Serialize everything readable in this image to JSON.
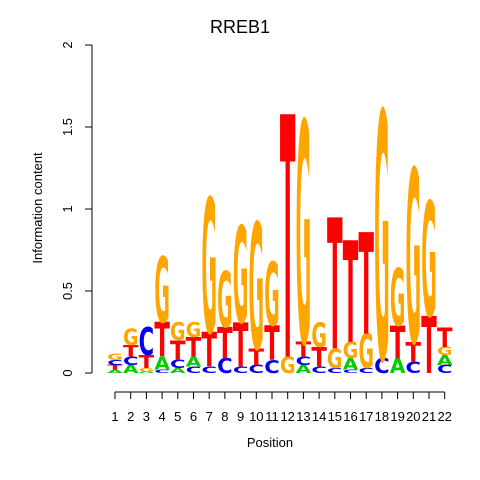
{
  "chart_data": {
    "type": "sequence-logo",
    "title": "RREB1",
    "xlabel": "Position",
    "ylabel": "Information content",
    "ylim": [
      0,
      2
    ],
    "yticks": [
      "0",
      "0.5",
      "1",
      "1.5",
      "2"
    ],
    "positions": [
      "1",
      "2",
      "3",
      "4",
      "5",
      "6",
      "7",
      "8",
      "9",
      "10",
      "11",
      "12",
      "13",
      "14",
      "15",
      "16",
      "17",
      "18",
      "19",
      "20",
      "21",
      "22"
    ],
    "colors": {
      "A": "#00cc00",
      "C": "#0000ee",
      "G": "#ffa500",
      "T": "#ff0000"
    },
    "stacks": [
      [
        [
          "A",
          0.02
        ],
        [
          "T",
          0.03
        ],
        [
          "C",
          0.03
        ],
        [
          "G",
          0.04
        ]
      ],
      [
        [
          "A",
          0.05
        ],
        [
          "C",
          0.05
        ],
        [
          "T",
          0.07
        ],
        [
          "G",
          0.1
        ]
      ],
      [
        [
          "A",
          0.01
        ],
        [
          "G",
          0.02
        ],
        [
          "T",
          0.08
        ],
        [
          "C",
          0.17
        ]
      ],
      [
        [
          "C",
          0.02
        ],
        [
          "A",
          0.08
        ],
        [
          "T",
          0.21
        ],
        [
          "G",
          0.4
        ]
      ],
      [
        [
          "A",
          0.03
        ],
        [
          "C",
          0.05
        ],
        [
          "T",
          0.12
        ],
        [
          "G",
          0.11
        ]
      ],
      [
        [
          "C",
          0.04
        ],
        [
          "A",
          0.06
        ],
        [
          "T",
          0.12
        ],
        [
          "G",
          0.09
        ]
      ],
      [
        [
          "C",
          0.04
        ],
        [
          "T",
          0.21
        ],
        [
          "G",
          0.82
        ]
      ],
      [
        [
          "C",
          0.09
        ],
        [
          "T",
          0.19
        ],
        [
          "G",
          0.34
        ]
      ],
      [
        [
          "C",
          0.04
        ],
        [
          "T",
          0.27
        ],
        [
          "G",
          0.59
        ]
      ],
      [
        [
          "C",
          0.05
        ],
        [
          "T",
          0.1
        ],
        [
          "G",
          0.77
        ]
      ],
      [
        [
          "C",
          0.08
        ],
        [
          "T",
          0.21
        ],
        [
          "G",
          0.39
        ]
      ],
      [
        [
          "G",
          0.1
        ],
        [
          "T",
          1.48
        ]
      ],
      [
        [
          "A",
          0.05
        ],
        [
          "C",
          0.05
        ],
        [
          "T",
          0.09
        ],
        [
          "G",
          1.35
        ]
      ],
      [
        [
          "C",
          0.04
        ],
        [
          "T",
          0.12
        ],
        [
          "G",
          0.15
        ]
      ],
      [
        [
          "C",
          0.03
        ],
        [
          "G",
          0.12
        ],
        [
          "T",
          0.8
        ]
      ],
      [
        [
          "C",
          0.02
        ],
        [
          "A",
          0.07
        ],
        [
          "G",
          0.1
        ],
        [
          "T",
          0.62
        ]
      ],
      [
        [
          "C",
          0.03
        ],
        [
          "G",
          0.21
        ],
        [
          "T",
          0.62
        ]
      ],
      [
        [
          "C",
          0.09
        ],
        [
          "G",
          1.51
        ]
      ],
      [
        [
          "A",
          0.09
        ],
        [
          "T",
          0.2
        ],
        [
          "G",
          0.35
        ]
      ],
      [
        [
          "C",
          0.07
        ],
        [
          "T",
          0.12
        ],
        [
          "G",
          1.06
        ]
      ],
      [
        [
          "T",
          0.35
        ],
        [
          "G",
          0.7
        ]
      ],
      [
        [
          "C",
          0.05
        ],
        [
          "A",
          0.06
        ],
        [
          "G",
          0.05
        ],
        [
          "T",
          0.12
        ]
      ]
    ]
  }
}
